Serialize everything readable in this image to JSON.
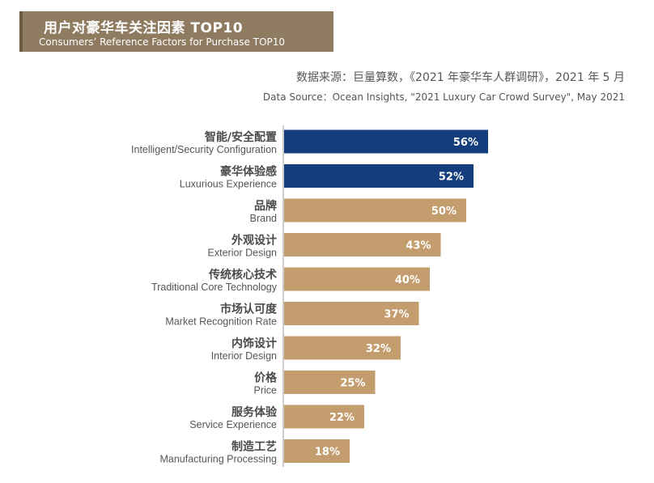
{
  "header": {
    "title": "用户对豪华车关注因素 TOP10",
    "subtitle": "Consumers’ Reference Factors for Purchase TOP10"
  },
  "source": {
    "cn": "数据来源：巨量算数，《2021 年豪华车人群调研》，2021 年 5 月",
    "en": "Data Source：Ocean Insights, \"2021 Luxury Car Crowd Survey\", May 2021"
  },
  "colors": {
    "highlight": "#133d7c",
    "normal": "#c49d6e",
    "banner": "#8f7b60",
    "axis": "#999999",
    "label_cn": "#4a4a4a",
    "label_en": "#555555"
  },
  "chart_data": {
    "type": "bar",
    "orientation": "horizontal",
    "categories": [
      {
        "cn": "智能/安全配置",
        "en": "Intelligent/Security Configuration"
      },
      {
        "cn": "豪华体验感",
        "en": "Luxurious Experience"
      },
      {
        "cn": "品牌",
        "en": "Brand"
      },
      {
        "cn": "外观设计",
        "en": "Exterior Design"
      },
      {
        "cn": "传统核心技术",
        "en": "Traditional Core Technology"
      },
      {
        "cn": "市场认可度",
        "en": "Market Recognition Rate"
      },
      {
        "cn": "内饰设计",
        "en": "Interior Design"
      },
      {
        "cn": "价格",
        "en": "Price"
      },
      {
        "cn": "服务体验",
        "en": "Service Experience"
      },
      {
        "cn": "制造工艺",
        "en": "Manufacturing Processing"
      }
    ],
    "values": [
      56,
      52,
      50,
      43,
      40,
      37,
      32,
      25,
      22,
      18
    ],
    "value_labels": [
      "56%",
      "52%",
      "50%",
      "43%",
      "40%",
      "37%",
      "32%",
      "25%",
      "22%",
      "18%"
    ],
    "highlighted_count": 2,
    "xlim": [
      0,
      100
    ],
    "grid": false,
    "legend": "none"
  }
}
